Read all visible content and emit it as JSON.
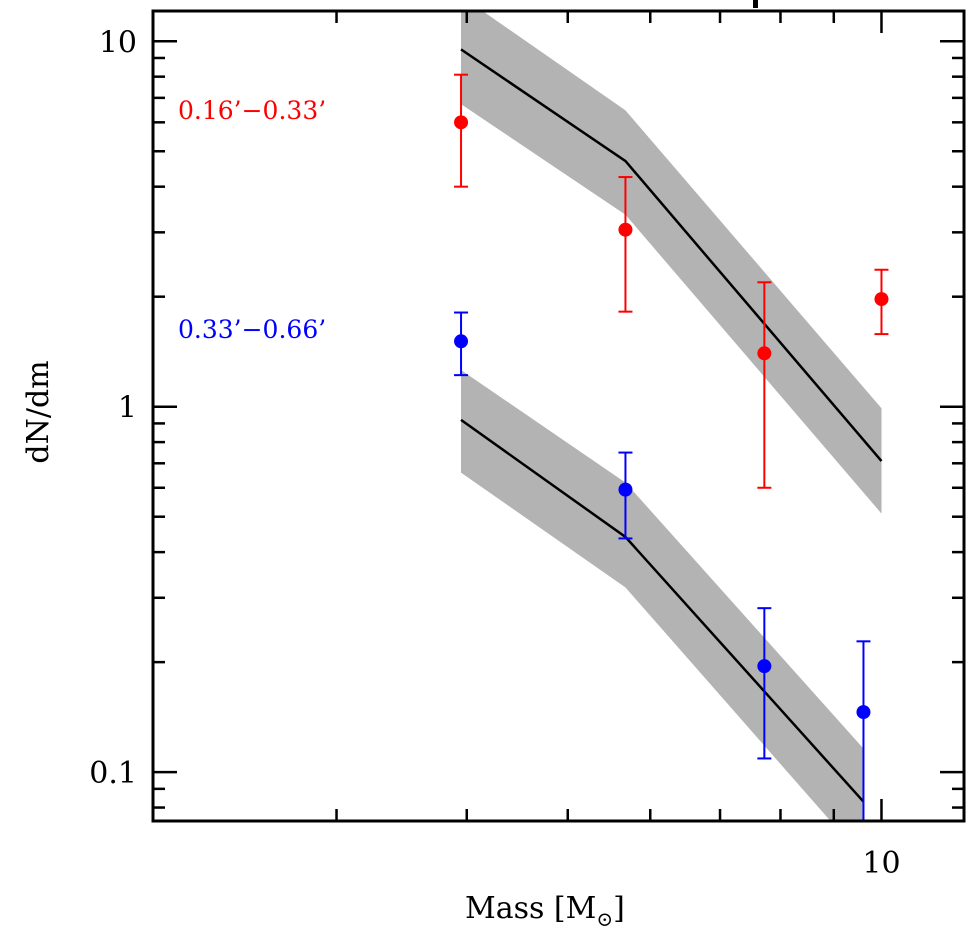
{
  "chart_data": {
    "type": "scatter",
    "title": "",
    "xlabel": "Mass [M⊙]",
    "xlabel_parts": {
      "main": "Mass [M",
      "sub": "⊙",
      "close": "]"
    },
    "ylabel": "dN/dm",
    "xscale": "log",
    "yscale": "log",
    "xlim": [
      2.0,
      12.0
    ],
    "ylim": [
      0.0735,
      12.1
    ],
    "grid": false,
    "x_major_ticks": [
      10
    ],
    "x_major_tick_labels": [
      "10"
    ],
    "x_minor_ticks": [
      3,
      4,
      5,
      6,
      7,
      8,
      9
    ],
    "y_major_ticks": [
      0.1,
      1,
      10
    ],
    "y_major_tick_labels": [
      "0.1",
      "1",
      "10"
    ],
    "y_minor_ticks": [
      0.08,
      0.09,
      0.2,
      0.3,
      0.4,
      0.5,
      0.6,
      0.7,
      0.8,
      0.9,
      2,
      3,
      4,
      5,
      6,
      7,
      8,
      9
    ],
    "series": [
      {
        "name": "0.16’−0.33’",
        "color": "#ff0000",
        "label_position": "top-left",
        "points": [
          {
            "x": 3.95,
            "y": 6.0,
            "y_low": 4.0,
            "y_high": 8.1
          },
          {
            "x": 5.68,
            "y": 3.05,
            "y_low": 1.82,
            "y_high": 4.25
          },
          {
            "x": 7.72,
            "y": 1.4,
            "y_low": 0.6,
            "y_high": 2.19
          },
          {
            "x": 10.0,
            "y": 1.97,
            "y_low": 1.58,
            "y_high": 2.37
          }
        ],
        "model": {
          "x": [
            3.95,
            5.68,
            10.0
          ],
          "y": [
            9.5,
            4.7,
            0.71
          ],
          "band_upper": [
            13.3,
            6.47,
            0.99
          ],
          "band_lower": [
            6.73,
            3.35,
            0.51
          ]
        }
      },
      {
        "name": "0.33’−0.66’",
        "color": "#0000ff",
        "label_position": "left",
        "points": [
          {
            "x": 3.95,
            "y": 1.51,
            "y_low": 1.22,
            "y_high": 1.81
          },
          {
            "x": 5.68,
            "y": 0.593,
            "y_low": 0.436,
            "y_high": 0.749
          },
          {
            "x": 7.72,
            "y": 0.195,
            "y_low": 0.109,
            "y_high": 0.281
          },
          {
            "x": 9.61,
            "y": 0.146,
            "y_low": 0.05,
            "y_high": 0.228
          }
        ],
        "model": {
          "x": [
            3.95,
            5.68,
            9.61
          ],
          "y": [
            0.92,
            0.44,
            0.083
          ],
          "band_upper": [
            1.26,
            0.62,
            0.116
          ],
          "band_lower": [
            0.66,
            0.32,
            0.058
          ]
        }
      }
    ],
    "model_line_color": "#000000",
    "band_color": "#b3b3b3"
  }
}
